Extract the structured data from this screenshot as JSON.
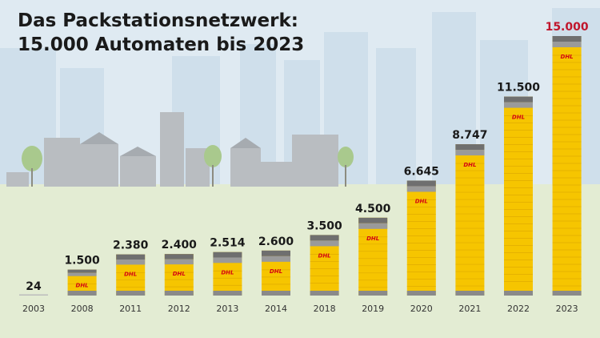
{
  "chart_data": {
    "type": "bar",
    "title_line1": "Das Packstationsnetzwerk:",
    "title_line2": "15.000 Automaten bis 2023",
    "categories": [
      "2003",
      "2008",
      "2011",
      "2012",
      "2013",
      "2014",
      "2018",
      "2019",
      "2020",
      "2021",
      "2022",
      "2023"
    ],
    "values": [
      24,
      1500,
      2380,
      2400,
      2514,
      2600,
      3500,
      4500,
      6645,
      8747,
      11500,
      15000
    ],
    "value_labels": [
      "24",
      "1.500",
      "2.380",
      "2.400",
      "2.514",
      "2.600",
      "3.500",
      "4.500",
      "6.645",
      "8.747",
      "11.500",
      "15.000"
    ],
    "bar_logo": "DHL",
    "ylim": [
      0,
      15000
    ],
    "xlabel": "",
    "ylabel": "",
    "grid": false,
    "colors": {
      "bar": "#f6c500",
      "bar_cap": "#7a7a7a",
      "logo": "#d40511",
      "highlight_label": "#c0162c",
      "label": "#1a1a1a",
      "ground": "#e3ecd3",
      "sky": "#dfeaf2"
    }
  }
}
